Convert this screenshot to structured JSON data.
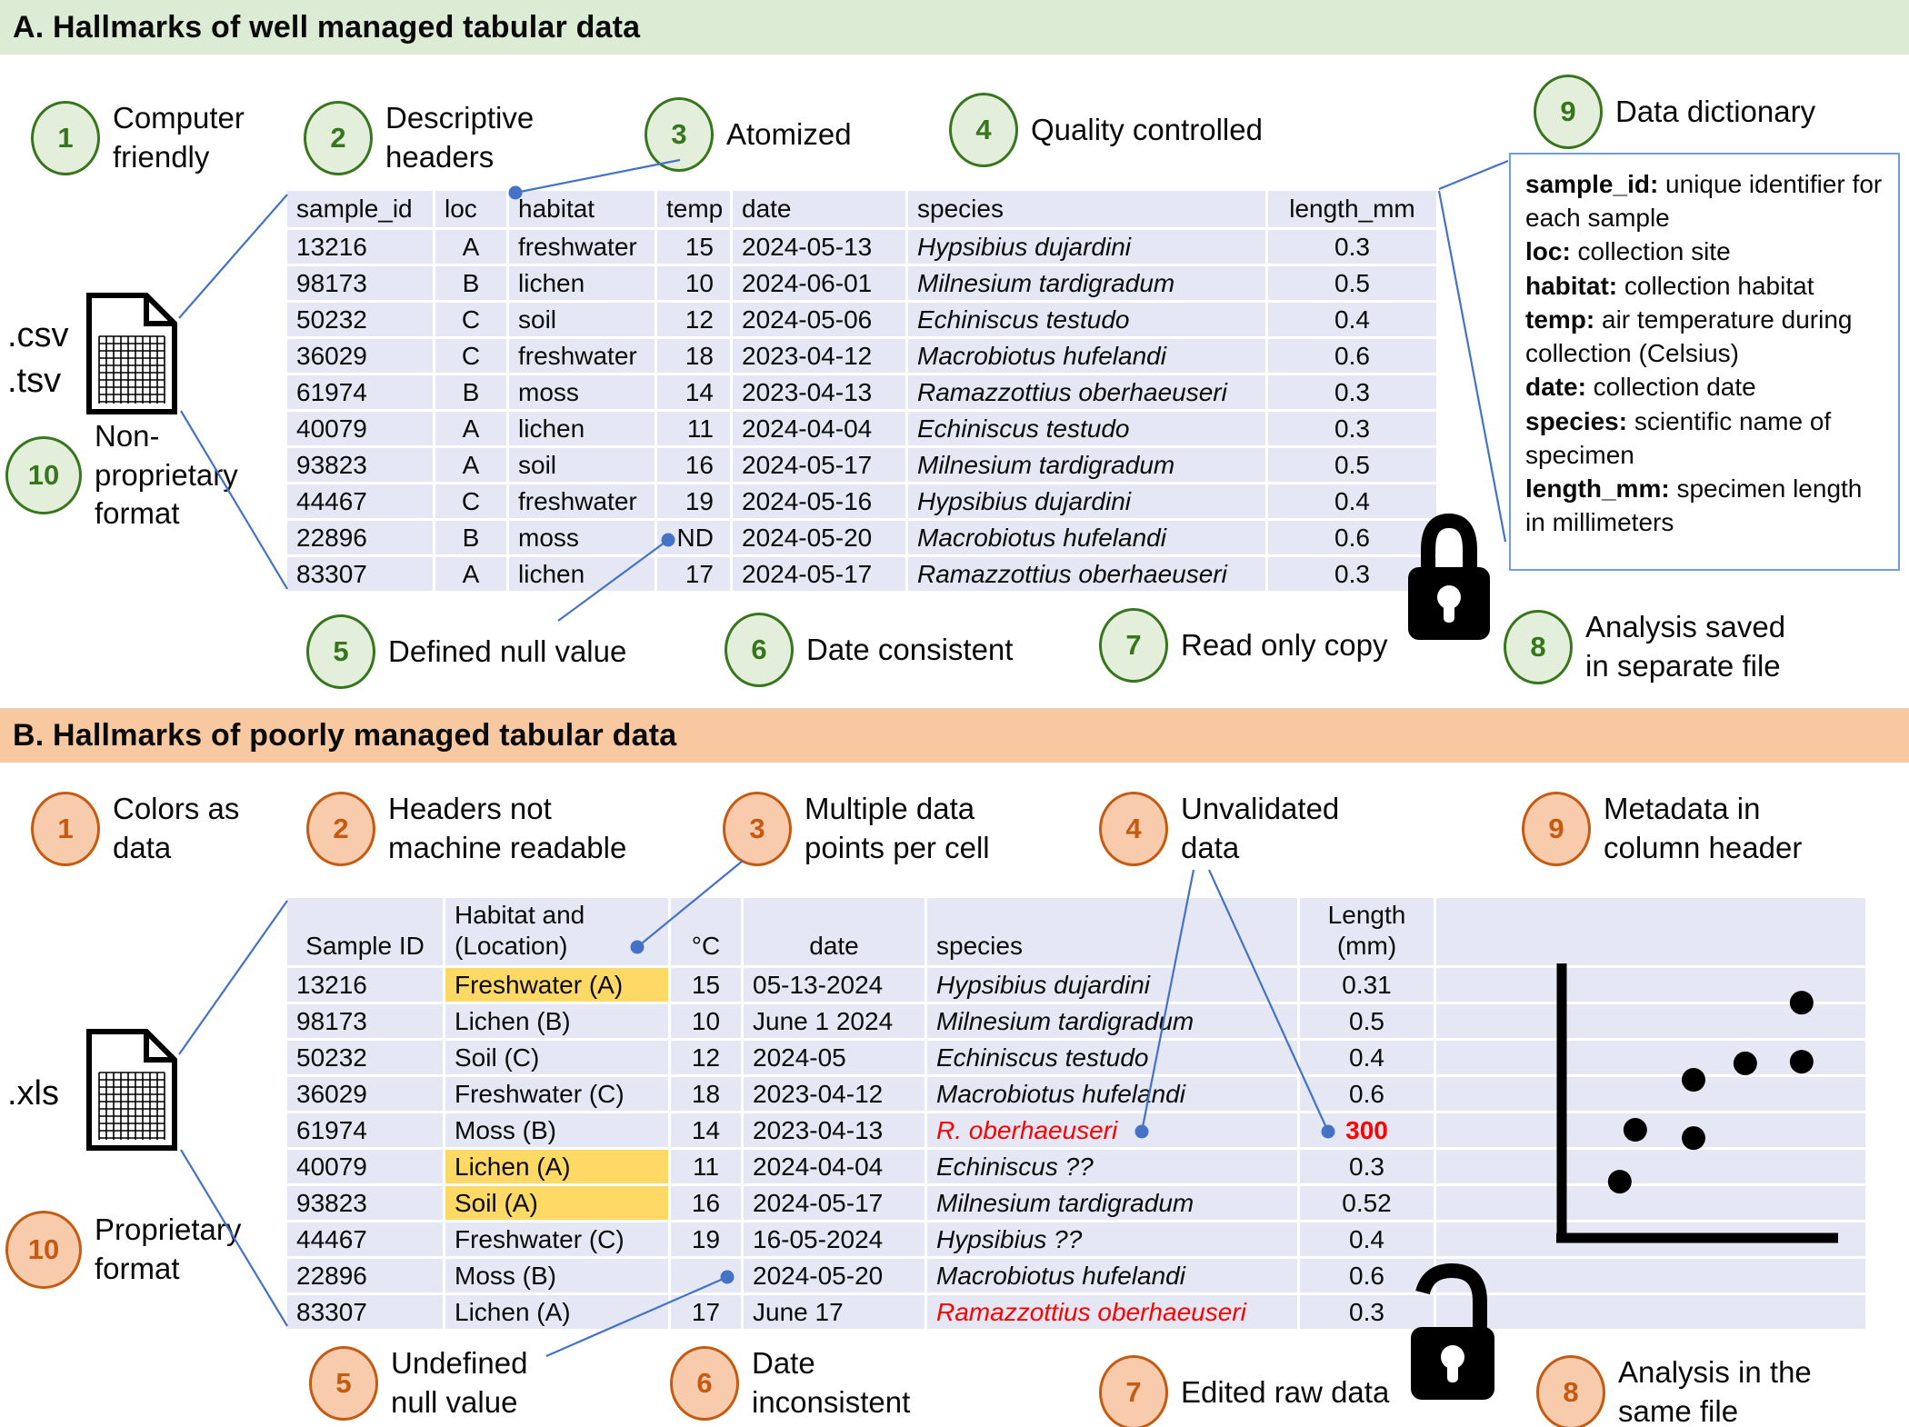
{
  "panelA": {
    "title": "A. Hallmarks of well managed tabular data",
    "items": [
      {
        "num": "1",
        "label": "Computer\nfriendly"
      },
      {
        "num": "2",
        "label": "Descriptive\nheaders"
      },
      {
        "num": "3",
        "label": "Atomized"
      },
      {
        "num": "4",
        "label": "Quality controlled"
      },
      {
        "num": "9",
        "label": "Data dictionary"
      },
      {
        "num": "5",
        "label": "Defined null value"
      },
      {
        "num": "6",
        "label": "Date consistent"
      },
      {
        "num": "7",
        "label": "Read only copy"
      },
      {
        "num": "8",
        "label": "Analysis saved\nin separate file"
      },
      {
        "num": "10",
        "label": "Non-\nproprietary\nformat"
      }
    ],
    "file_labels": [
      ".csv",
      ".tsv"
    ],
    "lock_icon": "closed-padlock",
    "table": {
      "headers": [
        "sample_id",
        "loc",
        "habitat",
        "temp",
        "date",
        "species",
        "length_mm"
      ],
      "rows": [
        [
          "13216",
          "A",
          "freshwater",
          "15",
          "2024-05-13",
          "Hypsibius dujardini",
          "0.3"
        ],
        [
          "98173",
          "B",
          "lichen",
          "10",
          "2024-06-01",
          "Milnesium tardigradum",
          "0.5"
        ],
        [
          "50232",
          "C",
          "soil",
          "12",
          "2024-05-06",
          "Echiniscus testudo",
          "0.4"
        ],
        [
          "36029",
          "C",
          "freshwater",
          "18",
          "2023-04-12",
          "Macrobiotus hufelandi",
          "0.6"
        ],
        [
          "61974",
          "B",
          "moss",
          "14",
          "2023-04-13",
          "Ramazzottius oberhaeuseri",
          "0.3"
        ],
        [
          "40079",
          "A",
          "lichen",
          "11",
          "2024-04-04",
          "Echiniscus testudo",
          "0.3"
        ],
        [
          "93823",
          "A",
          "soil",
          "16",
          "2024-05-17",
          "Milnesium tardigradum",
          "0.5"
        ],
        [
          "44467",
          "C",
          "freshwater",
          "19",
          "2024-05-16",
          "Hypsibius dujardini",
          "0.4"
        ],
        [
          "22896",
          "B",
          "moss",
          "ND",
          "2024-05-20",
          "Macrobiotus hufelandi",
          "0.6"
        ],
        [
          "83307",
          "A",
          "lichen",
          "17",
          "2024-05-17",
          "Ramazzottius oberhaeuseri",
          "0.3"
        ]
      ]
    },
    "dictionary": {
      "entries": [
        {
          "term": "sample_id:",
          "desc": " unique identifier for each sample"
        },
        {
          "term": "loc:",
          "desc": " collection site"
        },
        {
          "term": "habitat:",
          "desc": " collection habitat"
        },
        {
          "term": "temp:",
          "desc": " air temperature during collection (Celsius)"
        },
        {
          "term": "date:",
          "desc": " collection date"
        },
        {
          "term": "species:",
          "desc": " scientific name of specimen"
        },
        {
          "term": "length_mm:",
          "desc": " specimen length in millimeters"
        }
      ]
    }
  },
  "panelB": {
    "title": "B. Hallmarks of poorly managed tabular data",
    "items": [
      {
        "num": "1",
        "label": "Colors as\ndata"
      },
      {
        "num": "2",
        "label": "Headers not\nmachine readable"
      },
      {
        "num": "3",
        "label": "Multiple data\npoints per cell"
      },
      {
        "num": "4",
        "label": "Unvalidated\ndata"
      },
      {
        "num": "9",
        "label": "Metadata in\ncolumn header"
      },
      {
        "num": "5",
        "label": "Undefined\nnull value"
      },
      {
        "num": "6",
        "label": "Date\ninconsistent"
      },
      {
        "num": "7",
        "label": "Edited raw data"
      },
      {
        "num": "8",
        "label": "Analysis in the\nsame file"
      },
      {
        "num": "10",
        "label": "Proprietary\nformat"
      }
    ],
    "file_labels": [
      ".xls"
    ],
    "lock_icon": "open-padlock",
    "table": {
      "headers": [
        "Sample ID",
        "Habitat and\n(Location)",
        "°C",
        "date",
        "species",
        "Length\n(mm)"
      ],
      "rows": [
        [
          "13216",
          "Freshwater (A)",
          "15",
          "05-13-2024",
          "Hypsibius dujardini",
          "0.31"
        ],
        [
          "98173",
          "Lichen (B)",
          "10",
          "June 1 2024",
          "Milnesium tardigradum",
          "0.5"
        ],
        [
          "50232",
          "Soil (C)",
          "12",
          "2024-05",
          "Echiniscus testudo",
          "0.4"
        ],
        [
          "36029",
          "Freshwater (C)",
          "18",
          "2023-04-12",
          "Macrobiotus hufelandi",
          "0.6"
        ],
        [
          "61974",
          "Moss (B)",
          "14",
          "2023-04-13",
          "R. oberhaeuseri",
          "300"
        ],
        [
          "40079",
          "Lichen (A)",
          "11",
          "2024-04-04",
          "Echiniscus ??",
          "0.3"
        ],
        [
          "93823",
          "Soil (A)",
          "16",
          "2024-05-17",
          "Milnesium tardigradum",
          "0.52"
        ],
        [
          "44467",
          "Freshwater (C)",
          "19",
          "16-05-2024",
          "Hypsibius ??",
          "0.4"
        ],
        [
          "22896",
          "Moss (B)",
          "",
          "2024-05-20",
          "Macrobiotus hufelandi",
          "0.6"
        ],
        [
          "83307",
          "Lichen (A)",
          "17",
          "June 17",
          "Ramazzottius oberhaeuseri",
          "0.3"
        ]
      ],
      "yellow_cells": [
        [
          0,
          1
        ],
        [
          5,
          1
        ],
        [
          6,
          1
        ]
      ],
      "red_text_cells": [
        [
          4,
          4
        ],
        [
          9,
          4
        ]
      ],
      "bold_red_cells": [
        [
          4,
          5
        ]
      ],
      "empty_cells": [
        [
          8,
          2
        ]
      ]
    },
    "scatter": {
      "type": "scatter",
      "points": [
        [
          0.21,
          0.205
        ],
        [
          0.266,
          0.394
        ],
        [
          0.477,
          0.364
        ],
        [
          0.477,
          0.576
        ],
        [
          0.664,
          0.636
        ],
        [
          0.868,
          0.642
        ],
        [
          0.868,
          0.857
        ]
      ]
    }
  },
  "colors": {
    "green_header_bg": "#dcebd4",
    "green_accent": "#38761d",
    "green_circle_fill": "#e3efdb",
    "orange_header_bg": "#f8c9a0",
    "orange_accent": "#c55a11",
    "orange_circle_fill": "#f8cbad",
    "table_row_bg": "#e5e8f4",
    "highlight_yellow": "#ffd966",
    "error_red": "#fe0000",
    "connector_blue": "#4472c4",
    "dictionary_border": "#6d9eeb"
  }
}
